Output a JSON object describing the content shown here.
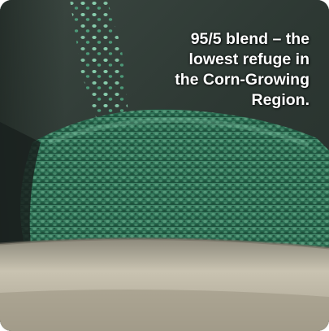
{
  "caption": {
    "text": "95/5 blend – the\nlowest refuge in\nthe Corn-Growing\nRegion."
  },
  "scene": {
    "subject": "seed-pile-icon",
    "colors": {
      "seed_green": "#3f8f6a",
      "seed_light": "#7cc6a4",
      "background_dark": "#2b3530",
      "tray": "#b9b2a0"
    }
  }
}
